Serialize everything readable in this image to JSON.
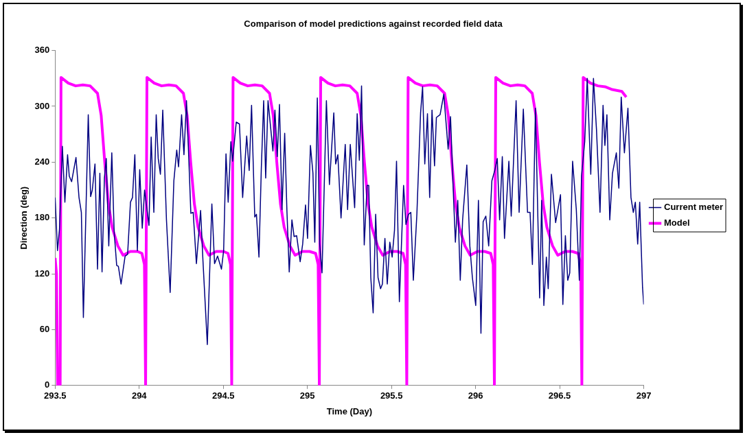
{
  "chart_data": {
    "type": "line",
    "title": "Comparison of model predictions against recorded field data",
    "xlabel": "Time (Day)",
    "ylabel": "Direction (deg)",
    "xlim": [
      293.5,
      297
    ],
    "xticks": [
      293.5,
      294,
      294.5,
      295,
      295.5,
      296,
      296.5,
      297
    ],
    "ylim": [
      0,
      360
    ],
    "yticks": [
      0,
      60,
      120,
      180,
      240,
      300,
      360
    ],
    "grid": false,
    "legend": "right",
    "marker": "none",
    "line_style": "solid",
    "series": [
      {
        "name": "Current meter",
        "color": "#000080",
        "x": [
          293.5,
          293.514,
          293.526,
          293.543,
          293.558,
          293.574,
          293.584,
          293.598,
          293.624,
          293.642,
          293.656,
          293.668,
          293.682,
          293.697,
          293.711,
          293.721,
          293.737,
          293.752,
          293.766,
          293.779,
          293.793,
          293.804,
          293.819,
          293.837,
          293.851,
          293.866,
          293.876,
          293.892,
          293.916,
          293.931,
          293.948,
          293.96,
          293.974,
          293.989,
          294.003,
          294.018,
          294.032,
          294.058,
          294.071,
          294.087,
          294.101,
          294.113,
          294.126,
          294.14,
          294.162,
          294.184,
          294.206,
          294.223,
          294.234,
          294.252,
          294.266,
          294.281,
          294.292,
          294.307,
          294.321,
          294.34,
          294.365,
          294.379,
          294.405,
          294.432,
          294.448,
          294.466,
          294.489,
          294.502,
          294.516,
          294.529,
          294.545,
          294.555,
          294.577,
          294.596,
          294.615,
          294.639,
          294.654,
          294.668,
          294.687,
          294.697,
          294.712,
          294.726,
          294.74,
          294.752,
          294.766,
          294.795,
          294.807,
          294.821,
          294.834,
          294.849,
          294.865,
          294.878,
          294.892,
          294.908,
          294.921,
          294.936,
          294.957,
          294.972,
          294.989,
          295.001,
          295.018,
          295.033,
          295.044,
          295.059,
          295.073,
          295.087,
          295.113,
          295.131,
          295.157,
          295.168,
          295.181,
          295.2,
          295.225,
          295.239,
          295.255,
          295.281,
          295.296,
          295.309,
          295.322,
          295.338,
          295.355,
          295.365,
          295.377,
          295.391,
          295.406,
          295.42,
          295.435,
          295.446,
          295.461,
          295.475,
          295.49,
          295.504,
          295.518,
          295.53,
          295.547,
          295.572,
          295.586,
          295.601,
          295.615,
          295.63,
          295.651,
          295.673,
          295.685,
          295.698,
          295.714,
          295.727,
          295.741,
          295.756,
          295.767,
          295.789,
          295.811,
          295.837,
          295.851,
          295.869,
          295.88,
          295.894,
          295.909,
          295.923,
          295.948,
          295.966,
          295.981,
          296.001,
          296.017,
          296.032,
          296.045,
          296.061,
          296.078,
          296.097,
          296.114,
          296.129,
          296.143,
          296.159,
          296.172,
          296.198,
          296.212,
          296.241,
          296.259,
          296.284,
          296.309,
          296.324,
          296.338,
          296.356,
          296.381,
          296.393,
          296.406,
          296.421,
          296.432,
          296.451,
          296.476,
          296.505,
          296.519,
          296.534,
          296.548,
          296.56,
          296.577,
          296.599,
          296.617,
          296.63,
          296.649,
          296.664,
          296.685,
          296.701,
          296.719,
          296.74,
          296.758,
          296.769,
          296.781,
          296.798,
          296.814,
          296.837,
          296.852,
          296.866,
          296.885,
          296.906,
          296.924,
          296.938,
          296.95,
          296.964,
          296.976,
          296.993,
          297
        ],
        "values": [
          202,
          145,
          168,
          257,
          197,
          248,
          225,
          219,
          245,
          202,
          186,
          73,
          178,
          291,
          203,
          210,
          238,
          125,
          228,
          122,
          223,
          244,
          150,
          250,
          165,
          129,
          128,
          109,
          139,
          141,
          197,
          202,
          248,
          145,
          232,
          169,
          210,
          172,
          267,
          186,
          291,
          244,
          227,
          296,
          178,
          100,
          220,
          253,
          235,
          291,
          248,
          306,
          257,
          185,
          186,
          131,
          188,
          134,
          44,
          195,
          131,
          139,
          125,
          145,
          249,
          197,
          262,
          241,
          283,
          281,
          202,
          268,
          231,
          301,
          181,
          184,
          138,
          233,
          306,
          223,
          306,
          252,
          296,
          246,
          302,
          189,
          271,
          189,
          122,
          178,
          160,
          161,
          133,
          152,
          194,
          158,
          258,
          228,
          154,
          309,
          152,
          121,
          306,
          216,
          293,
          238,
          248,
          180,
          259,
          189,
          259,
          191,
          292,
          242,
          322,
          151,
          215,
          215,
          116,
          78,
          184,
          116,
          104,
          109,
          158,
          109,
          154,
          138,
          167,
          241,
          90,
          215,
          173,
          184,
          186,
          113,
          184,
          293,
          321,
          238,
          292,
          202,
          296,
          236,
          288,
          291,
          313,
          254,
          289,
          202,
          154,
          199,
          113,
          178,
          237,
          150,
          116,
          86,
          199,
          56,
          176,
          182,
          150,
          220,
          231,
          244,
          178,
          246,
          158,
          241,
          182,
          306,
          186,
          297,
          186,
          186,
          130,
          298,
          94,
          199,
          86,
          138,
          104,
          227,
          175,
          205,
          87,
          161,
          113,
          121,
          241,
          189,
          113,
          225,
          262,
          330,
          227,
          330,
          275,
          186,
          301,
          258,
          291,
          178,
          228,
          250,
          212,
          310,
          250,
          298,
          202,
          186,
          197,
          152,
          197,
          105,
          87
        ]
      },
      {
        "name": "Model",
        "color": "#ff00ff",
        "x": [
          293.5,
          293.508,
          293.515,
          293.53,
          293.535,
          293.578,
          293.622,
          293.665,
          293.708,
          293.752,
          293.774,
          293.795,
          293.817,
          293.839,
          293.873,
          293.904,
          293.947,
          293.99,
          294.016,
          294.031,
          294.038,
          294.046,
          294.089,
          294.133,
          294.176,
          294.219,
          294.263,
          294.285,
          294.306,
          294.328,
          294.35,
          294.384,
          294.415,
          294.458,
          294.501,
          294.528,
          294.543,
          294.55,
          294.558,
          294.601,
          294.645,
          294.688,
          294.731,
          294.775,
          294.797,
          294.818,
          294.84,
          294.862,
          294.896,
          294.927,
          294.97,
          295.013,
          295.049,
          295.064,
          295.071,
          295.079,
          295.122,
          295.166,
          295.209,
          295.252,
          295.296,
          295.318,
          295.339,
          295.361,
          295.383,
          295.417,
          295.448,
          295.491,
          295.534,
          295.569,
          295.584,
          295.591,
          295.599,
          295.642,
          295.686,
          295.729,
          295.772,
          295.816,
          295.838,
          295.859,
          295.881,
          295.903,
          295.937,
          295.968,
          296.011,
          296.054,
          296.09,
          296.105,
          296.112,
          296.12,
          296.163,
          296.207,
          296.25,
          296.293,
          296.337,
          296.359,
          296.38,
          296.402,
          296.424,
          296.458,
          296.489,
          296.532,
          296.575,
          296.61,
          296.625,
          296.632,
          296.64,
          296.683,
          296.727,
          296.77,
          296.813,
          296.87,
          296.896
        ],
        "values": [
          137,
          120,
          0,
          0,
          331,
          325,
          322,
          323,
          322,
          314,
          290,
          240,
          195,
          170,
          150,
          140,
          144,
          144,
          142,
          130,
          0,
          331,
          325,
          322,
          323,
          322,
          314,
          290,
          240,
          195,
          170,
          150,
          140,
          144,
          144,
          142,
          130,
          0,
          331,
          325,
          322,
          323,
          322,
          314,
          290,
          240,
          195,
          170,
          150,
          140,
          144,
          144,
          142,
          130,
          0,
          331,
          325,
          322,
          323,
          322,
          314,
          290,
          240,
          195,
          170,
          150,
          140,
          144,
          144,
          142,
          130,
          0,
          331,
          325,
          322,
          323,
          322,
          314,
          290,
          240,
          195,
          170,
          150,
          140,
          144,
          144,
          142,
          130,
          0,
          331,
          325,
          322,
          323,
          322,
          314,
          290,
          240,
          195,
          170,
          150,
          140,
          144,
          144,
          142,
          130,
          0,
          331,
          325,
          322,
          321,
          318,
          316,
          310
        ]
      }
    ]
  }
}
